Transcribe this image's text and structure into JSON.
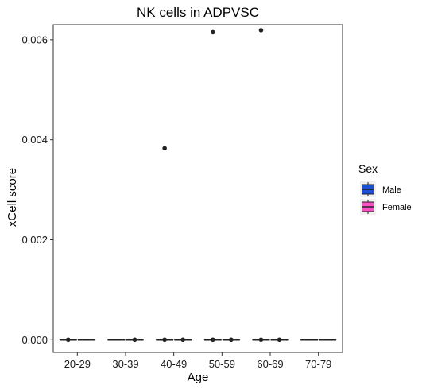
{
  "chart_data": {
    "type": "boxplot",
    "title": "NK cells in ADPVSC",
    "xlabel": "Age",
    "ylabel": "xCell score",
    "categories": [
      "20-29",
      "30-39",
      "40-49",
      "50-59",
      "60-69",
      "70-79"
    ],
    "ylim": [
      -0.00025,
      0.0063
    ],
    "yticks": [
      0.0,
      0.002,
      0.004,
      0.006
    ],
    "ytick_labels": [
      "0.000",
      "0.002",
      "0.004",
      "0.006"
    ],
    "grid": false,
    "legend": {
      "title": "Sex",
      "position": "right",
      "entries": [
        {
          "name": "Male",
          "color": "#1a4fd6"
        },
        {
          "name": "Female",
          "color": "#ff4fc4"
        }
      ]
    },
    "series": [
      {
        "name": "Male",
        "color": "#1a4fd6",
        "boxes": [
          {
            "q1": 0,
            "median": 0,
            "q3": 0,
            "whisker_low": 0,
            "whisker_high": 0
          },
          {
            "q1": 0,
            "median": 0,
            "q3": 0,
            "whisker_low": 0,
            "whisker_high": 0
          },
          {
            "q1": 0,
            "median": 0,
            "q3": 0,
            "whisker_low": 0,
            "whisker_high": 0
          },
          {
            "q1": 0,
            "median": 0,
            "q3": 0,
            "whisker_low": 0,
            "whisker_high": 0
          },
          {
            "q1": 0,
            "median": 0,
            "q3": 0,
            "whisker_low": 0,
            "whisker_high": 0
          },
          {
            "q1": 0,
            "median": 0,
            "q3": 0,
            "whisker_low": 0,
            "whisker_high": 0
          }
        ],
        "outliers": [
          {
            "category": "20-29",
            "value": 0.0
          },
          {
            "category": "40-49",
            "value": 0.00383
          },
          {
            "category": "40-49",
            "value": 0.0
          },
          {
            "category": "50-59",
            "value": 0.00615
          },
          {
            "category": "50-59",
            "value": 0.0
          },
          {
            "category": "60-69",
            "value": 0.00619
          },
          {
            "category": "60-69",
            "value": 0.0
          }
        ]
      },
      {
        "name": "Female",
        "color": "#ff4fc4",
        "boxes": [
          {
            "q1": 0,
            "median": 0,
            "q3": 0,
            "whisker_low": 0,
            "whisker_high": 0
          },
          {
            "q1": 0,
            "median": 0,
            "q3": 0,
            "whisker_low": 0,
            "whisker_high": 0
          },
          {
            "q1": 0,
            "median": 0,
            "q3": 0,
            "whisker_low": 0,
            "whisker_high": 0
          },
          {
            "q1": 0,
            "median": 0,
            "q3": 0,
            "whisker_low": 0,
            "whisker_high": 0
          },
          {
            "q1": 0,
            "median": 0,
            "q3": 0,
            "whisker_low": 0,
            "whisker_high": 0
          },
          {
            "q1": 0,
            "median": 0,
            "q3": 0,
            "whisker_low": 0,
            "whisker_high": 0
          }
        ],
        "outliers": [
          {
            "category": "30-39",
            "value": 0.0
          },
          {
            "category": "40-49",
            "value": 0.0
          },
          {
            "category": "50-59",
            "value": 0.0
          },
          {
            "category": "60-69",
            "value": 0.0
          }
        ]
      }
    ]
  }
}
